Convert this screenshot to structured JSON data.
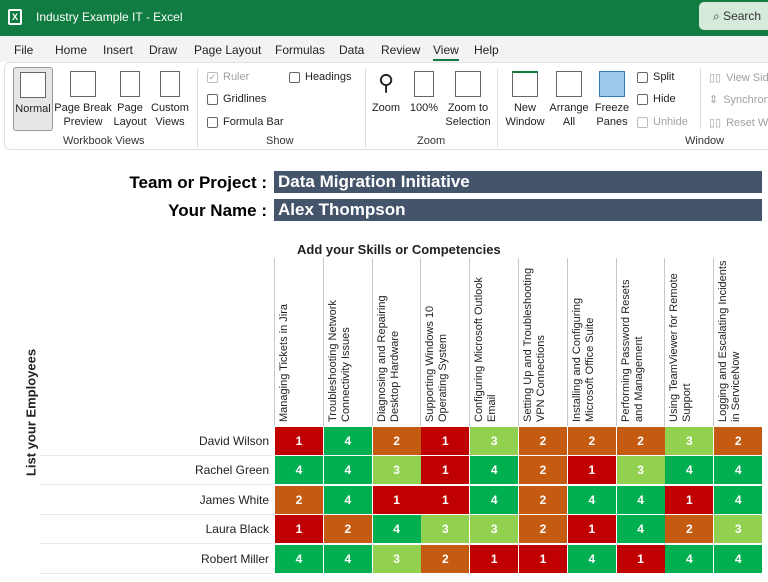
{
  "window": {
    "title": "Industry Example IT  -  Excel",
    "search": "Search"
  },
  "menu": [
    "File",
    "Home",
    "Insert",
    "Draw",
    "Page Layout",
    "Formulas",
    "Data",
    "Review",
    "View",
    "Help"
  ],
  "active_menu": "View",
  "ribbon": {
    "workbook_views": {
      "label": "Workbook Views",
      "buttons": [
        "Normal",
        "Page Break Preview",
        "Page Layout",
        "Custom Views"
      ]
    },
    "show": {
      "label": "Show",
      "ruler": "Ruler",
      "gridlines": "Gridlines",
      "formula_bar": "Formula Bar",
      "headings": "Headings"
    },
    "zoom": {
      "label": "Zoom",
      "buttons": [
        "Zoom",
        "100%",
        "Zoom to Selection"
      ]
    },
    "window": {
      "label": "Window",
      "buttons": [
        "New Window",
        "Arrange All",
        "Freeze Panes"
      ],
      "split": "Split",
      "hide": "Hide",
      "unhide": "Unhide",
      "view_side": "View Side",
      "synchronous": "Synchron",
      "reset": "Reset Win"
    }
  },
  "sheet": {
    "team_label": "Team or Project :",
    "team_value": "Data Migration Initiative",
    "name_label": "Your Name :",
    "name_value": "Alex Thompson",
    "skills_title": "Add your Skills or Competencies",
    "employees_title": "List your Employees",
    "skills": [
      "Managing Tickets in Jira",
      "Troubleshooting Network Connectivity Issues",
      "Diagnosing and Repairing Desktop Hardware",
      "Supporting Windows 10 Operating System",
      "Configuring Microsoft Outlook Email",
      "Setting Up and Troubleshooting VPN Connections",
      "Installing and Configuring Microsoft Office Suite",
      "Performing Password Resets and Management",
      "Using TeamViewer for Remote Support",
      "Logging and Escalating Incidents in ServiceNow"
    ],
    "employees": [
      {
        "name": "David Wilson",
        "scores": [
          1,
          4,
          2,
          1,
          3,
          2,
          2,
          2,
          3,
          2
        ]
      },
      {
        "name": "Rachel Green",
        "scores": [
          4,
          4,
          3,
          1,
          4,
          2,
          1,
          3,
          4,
          4
        ]
      },
      {
        "name": "James White",
        "scores": [
          2,
          4,
          1,
          1,
          4,
          2,
          4,
          4,
          1,
          4
        ]
      },
      {
        "name": "Laura Black",
        "scores": [
          1,
          2,
          4,
          3,
          3,
          2,
          1,
          4,
          2,
          3
        ]
      },
      {
        "name": "Robert Miller",
        "scores": [
          4,
          4,
          3,
          2,
          1,
          1,
          4,
          1,
          4,
          4
        ]
      }
    ],
    "score_colors": {
      "1": "#c00000",
      "2": "#c55a11",
      "3": "#92d050",
      "4": "#00b050"
    }
  }
}
